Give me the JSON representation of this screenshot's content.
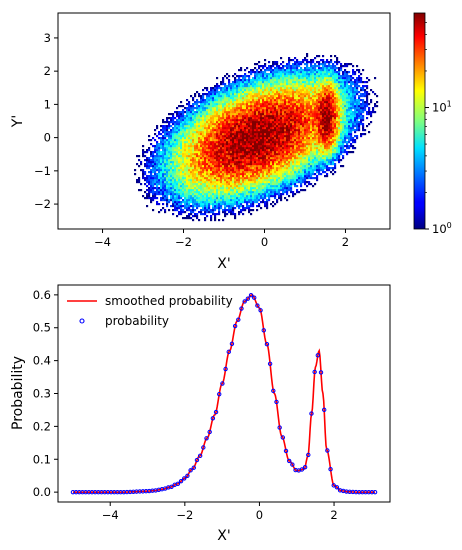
{
  "chart_data": [
    {
      "type": "heatmap",
      "title": "",
      "xlabel": "X'",
      "ylabel": "Y'",
      "xlim": [
        -5.1,
        3.1
      ],
      "ylim": [
        -2.75,
        3.75
      ],
      "xticks": [
        -4,
        -2,
        0,
        2
      ],
      "yticks": [
        -2,
        -1,
        0,
        1,
        2,
        3
      ],
      "xtick_labels": [
        "−4",
        "−2",
        "0",
        "2"
      ],
      "ytick_labels": [
        "−2",
        "−1",
        "0",
        "1",
        "2",
        "3"
      ],
      "colormap": "jet",
      "colorbar": {
        "scale": "log",
        "range": [
          1,
          60
        ],
        "tick_labels": [
          {
            "value": 1,
            "base": "10",
            "exp": "0"
          },
          {
            "value": 10,
            "base": "10",
            "exp": "1"
          }
        ]
      },
      "clusters": [
        {
          "x_center": -0.2,
          "y_center": 0.0,
          "x_spread": 0.9,
          "y_spread": 0.75,
          "peak_count": 60
        },
        {
          "x_center": 1.55,
          "y_center": 0.6,
          "x_spread": 0.15,
          "y_spread": 0.55,
          "peak_count": 45
        }
      ]
    },
    {
      "type": "line",
      "title": "",
      "xlabel": "X'",
      "ylabel": "Probability",
      "xlim": [
        -5.4,
        3.5
      ],
      "ylim": [
        -0.03,
        0.63
      ],
      "xticks": [
        -4,
        -2,
        0,
        2
      ],
      "yticks": [
        0.0,
        0.1,
        0.2,
        0.3,
        0.4,
        0.5,
        0.6
      ],
      "xtick_labels": [
        "−4",
        "−2",
        "0",
        "2"
      ],
      "ytick_labels": [
        "0.0",
        "0.1",
        "0.2",
        "0.3",
        "0.4",
        "0.5",
        "0.6"
      ],
      "legend_position": "upper-left",
      "series": [
        {
          "name": "smoothed probability",
          "style": "line",
          "color": "#ff0000"
        },
        {
          "name": "probability",
          "style": "markers",
          "color": "#0000ff"
        }
      ],
      "x": [
        -5.0,
        -4.8,
        -4.6,
        -4.4,
        -4.2,
        -4.0,
        -3.8,
        -3.6,
        -3.4,
        -3.2,
        -3.0,
        -2.8,
        -2.6,
        -2.4,
        -2.2,
        -2.0,
        -1.8,
        -1.6,
        -1.4,
        -1.2,
        -1.0,
        -0.8,
        -0.6,
        -0.4,
        -0.2,
        0.0,
        0.2,
        0.4,
        0.6,
        0.8,
        1.0,
        1.2,
        1.3,
        1.4,
        1.5,
        1.6,
        1.7,
        1.8,
        2.0,
        2.2,
        2.4,
        2.6,
        2.8,
        3.0,
        3.1
      ],
      "y": [
        0.0,
        0.0,
        0.0,
        0.0,
        0.0,
        0.0,
        0.0,
        0.0,
        0.001,
        0.002,
        0.003,
        0.005,
        0.009,
        0.015,
        0.025,
        0.042,
        0.07,
        0.11,
        0.165,
        0.235,
        0.33,
        0.43,
        0.52,
        0.58,
        0.6,
        0.56,
        0.45,
        0.3,
        0.17,
        0.095,
        0.065,
        0.07,
        0.11,
        0.24,
        0.38,
        0.43,
        0.3,
        0.13,
        0.02,
        0.004,
        0.001,
        0.0,
        0.0,
        0.0,
        0.0
      ]
    }
  ]
}
